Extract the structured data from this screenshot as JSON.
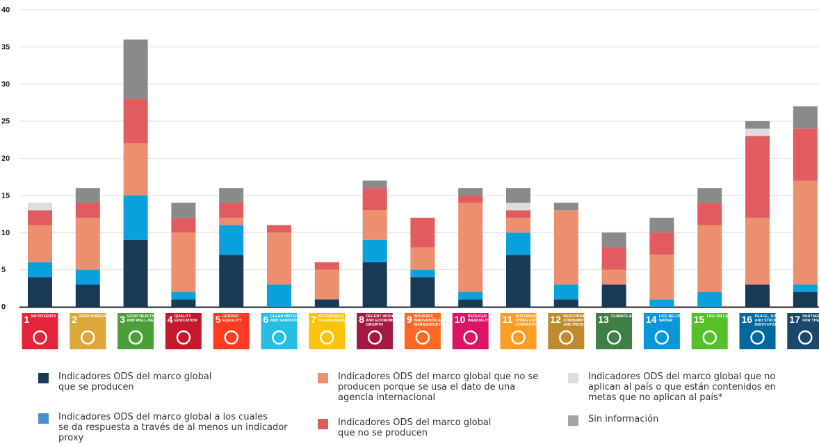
{
  "chart_data": {
    "type": "bar",
    "stacked": true,
    "ylim": [
      0,
      40
    ],
    "yticks": [
      0,
      5,
      10,
      15,
      20,
      25,
      30,
      35,
      40
    ],
    "grid": true,
    "legend_position": "bottom",
    "categories": [
      "1",
      "2",
      "3",
      "4",
      "5",
      "6",
      "7",
      "8",
      "9",
      "10",
      "11",
      "12",
      "13",
      "14",
      "15",
      "16",
      "17"
    ],
    "category_labels": [
      "NO POVERTY",
      "ZERO HUNGER",
      "GOOD HEALTH AND WELL-BEING",
      "QUALITY EDUCATION",
      "GENDER EQUALITY",
      "CLEAN WATER AND SANITATION",
      "AFFORDABLE AND CLEAN ENERGY",
      "DECENT WORK AND ECONOMIC GROWTH",
      "INDUSTRY, INNOVATION AND INFRASTRUCTURE",
      "REDUCED INEQUALITIES",
      "SUSTAINABLE CITIES AND COMMUNITIES",
      "RESPONSIBLE CONSUMPTION AND PRODUCTION",
      "CLIMATE ACTION",
      "LIFE BELOW WATER",
      "LIFE ON LAND",
      "PEACE, JUSTICE AND STRONG INSTITUTIONS",
      "PARTNERSHIPS FOR THE GOALS"
    ],
    "category_colors": [
      "#e5243b",
      "#dda63a",
      "#4c9f38",
      "#c5192d",
      "#ff3a21",
      "#26bde2",
      "#fcc30b",
      "#a21942",
      "#fd6925",
      "#dd1367",
      "#fd9d24",
      "#bf8b2e",
      "#3f7e44",
      "#0a97d9",
      "#56c02b",
      "#00689d",
      "#19486a"
    ],
    "series": [
      {
        "name": "Indicadores ODS del marco global que se producen",
        "color": "#183a56",
        "values": [
          4,
          3,
          9,
          1,
          7,
          0,
          1,
          6,
          4,
          1,
          7,
          1,
          3,
          0,
          0,
          3,
          2
        ]
      },
      {
        "name": "Indicadores ODS del marco global a los cuales se da respuesta a través de al menos un indicador proxy",
        "color": "#0aa0dc",
        "values": [
          2,
          2,
          6,
          1,
          4,
          3,
          0,
          3,
          1,
          1,
          3,
          2,
          0,
          1,
          2,
          0,
          1
        ]
      },
      {
        "name": "Indicadores ODS del marco global que no se producen porque se usa el dato de una agencia internacional",
        "color": "#ec8f6e",
        "values": [
          5,
          7,
          7,
          8,
          1,
          7,
          4,
          4,
          3,
          12,
          2,
          10,
          2,
          6,
          9,
          9,
          14
        ]
      },
      {
        "name": "Indicadores ODS del marco global que no se producen",
        "color": "#e25b5e",
        "values": [
          2,
          2,
          6,
          2,
          2,
          1,
          1,
          3,
          4,
          1,
          1,
          0,
          3,
          3,
          3,
          11,
          7
        ]
      },
      {
        "name": "Indicadores ODS del marco global que no aplican al país o que están contenidos en metas que no aplican al país*",
        "color": "#dddddd",
        "values": [
          1,
          0,
          0,
          0,
          0,
          0,
          0,
          0,
          0,
          0,
          1,
          0,
          0,
          0,
          0,
          1,
          0
        ]
      },
      {
        "name": "Sin información",
        "color": "#8a8a8a",
        "values": [
          0,
          2,
          8,
          2,
          2,
          0,
          0,
          1,
          0,
          1,
          2,
          1,
          2,
          2,
          2,
          1,
          3
        ]
      }
    ]
  },
  "legend": {
    "items": [
      {
        "text": "Indicadores ODS del marco global\nque se producen",
        "color": "#183a56"
      },
      {
        "text": "Indicadores ODS del marco global a los cuales\nse da respuesta a través de al menos un indicador\nproxy",
        "color": "#4a90d0"
      },
      {
        "text": "Indicadores ODS del marco global que no se\nproducen porque se usa el dato de una\nagencia internacional",
        "color": "#ec8f6e"
      },
      {
        "text": "Indicadores ODS del marco global\nque no se producen",
        "color": "#e25b5e"
      },
      {
        "text": "Indicadores ODS del marco global que no\naplican al país o que están contenidos en\nmetas que no aplican al país*",
        "color": "#dddddd"
      },
      {
        "text": "Sin información",
        "color": "#a3a3a3"
      }
    ]
  }
}
